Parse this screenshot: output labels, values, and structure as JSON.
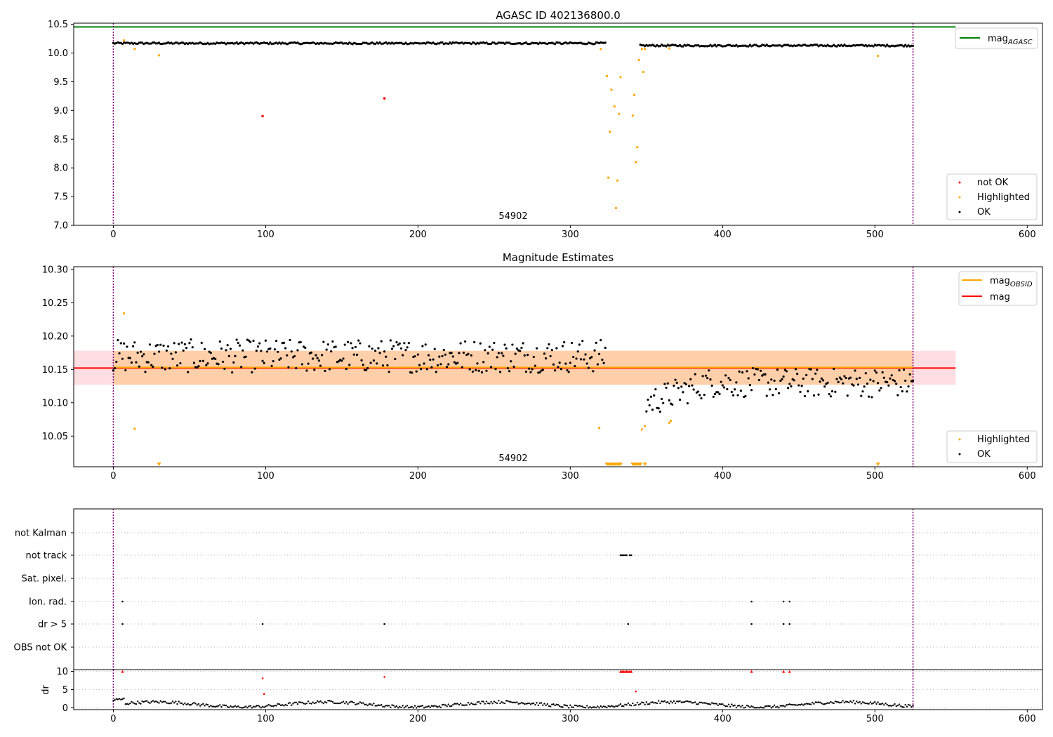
{
  "chart_data": [
    {
      "panel": "top",
      "type": "scatter",
      "title": "AGASC ID 402136800.0",
      "xlabel": "",
      "ylabel": "",
      "xlim": [
        -26,
        610
      ],
      "ylim": [
        7.0,
        10.52
      ],
      "xticks": [
        "0",
        "100",
        "200",
        "300",
        "400",
        "500",
        "600"
      ],
      "yticks": [
        "7.0",
        "7.5",
        "8.0",
        "8.5",
        "9.0",
        "9.5",
        "10.0",
        "10.5"
      ],
      "obsid_label": "54902",
      "obs_bounds": [
        0,
        525
      ],
      "mag_agasc": 10.455,
      "mag_agasc_extent": [
        -26,
        553
      ],
      "legend_lines": [
        {
          "label": "mag",
          "sub": "AGASC",
          "color": "#008000"
        }
      ],
      "legend_points": [
        {
          "label": "not OK",
          "color": "#ff0000"
        },
        {
          "label": "Highlighted",
          "color": "#ffa500"
        },
        {
          "label": "OK",
          "color": "#000000"
        }
      ],
      "ok_series": [
        {
          "x_start": 0,
          "x_end": 323,
          "mean": 10.17,
          "wiggle": 0.015
        },
        {
          "x_start": 346,
          "x_end": 525,
          "mean": 10.13,
          "wiggle": 0.015
        }
      ],
      "not_ok_points": [
        [
          98,
          8.9
        ],
        [
          178,
          9.21
        ]
      ],
      "highlighted_points": [
        [
          7,
          10.22
        ],
        [
          14,
          10.07
        ],
        [
          30,
          9.96
        ],
        [
          320,
          10.07
        ],
        [
          324,
          9.6
        ],
        [
          325,
          7.83
        ],
        [
          326,
          8.63
        ],
        [
          327,
          9.36
        ],
        [
          329,
          9.07
        ],
        [
          330,
          7.3
        ],
        [
          331,
          7.78
        ],
        [
          332,
          8.94
        ],
        [
          333,
          9.58
        ],
        [
          341,
          8.91
        ],
        [
          342,
          9.27
        ],
        [
          343,
          8.1
        ],
        [
          344,
          8.36
        ],
        [
          345,
          9.88
        ],
        [
          347,
          10.07
        ],
        [
          348,
          9.67
        ],
        [
          349,
          10.07
        ],
        [
          365,
          10.08
        ],
        [
          502,
          9.95
        ]
      ]
    },
    {
      "panel": "middle",
      "type": "scatter",
      "title": "Magnitude Estimates",
      "xlabel": "",
      "ylabel": "",
      "xlim": [
        -26,
        610
      ],
      "ylim": [
        10.004,
        10.304
      ],
      "xticks": [
        "0",
        "100",
        "200",
        "300",
        "400",
        "500",
        "600"
      ],
      "yticks": [
        "10.05",
        "10.10",
        "10.15",
        "10.20",
        "10.25",
        "10.30"
      ],
      "obsid_label": "54902",
      "obs_bounds": [
        0,
        525
      ],
      "mag_line": 10.152,
      "mag_obsid_line": 10.153,
      "band": [
        10.127,
        10.178
      ],
      "legend_lines": [
        {
          "label": "mag",
          "sub": "OBSID",
          "color": "#ffa500"
        },
        {
          "label": "mag",
          "sub": "",
          "color": "#ff0000"
        }
      ],
      "legend_points": [
        {
          "label": "Highlighted",
          "color": "#ffa500"
        },
        {
          "label": "OK",
          "color": "#000000"
        }
      ],
      "ok_series": [
        {
          "x_start": 0,
          "x_end": 323,
          "mean": 10.17,
          "spread": 0.025
        },
        {
          "x_start": 350,
          "x_end": 525,
          "mean": 10.13,
          "spread": 0.022
        }
      ],
      "highlighted_points": [
        [
          7,
          10.234
        ],
        [
          14,
          10.061
        ],
        [
          319,
          10.062
        ],
        [
          347,
          10.06
        ],
        [
          349,
          10.065
        ],
        [
          365,
          10.07
        ],
        [
          366,
          10.073
        ]
      ],
      "off_scale_markers": [
        30,
        324,
        325,
        326,
        327,
        328,
        329,
        330,
        331,
        332,
        333,
        341,
        342,
        343,
        344,
        345,
        346,
        349,
        502
      ]
    },
    {
      "panel": "flags",
      "type": "scatter",
      "categories": [
        "not Kalman",
        "not track",
        "Sat. pixel.",
        "Ion. rad.",
        "dr > 5",
        "OBS not OK"
      ],
      "xlim": [
        -26,
        610
      ],
      "obs_bounds": [
        0,
        525
      ],
      "points": [
        {
          "category": "not track",
          "x": [
            333,
            334,
            335,
            336,
            337,
            339,
            340
          ]
        },
        {
          "category": "Ion. rad.",
          "x": [
            6,
            419,
            440,
            444
          ]
        },
        {
          "category": "dr > 5",
          "x": [
            6,
            98,
            178,
            338,
            419,
            440,
            444
          ]
        }
      ]
    },
    {
      "panel": "bottom",
      "type": "scatter",
      "ylabel": "dr",
      "xlim": [
        -26,
        610
      ],
      "ylim": [
        -0.5,
        10.5
      ],
      "xticks": [
        "0",
        "100",
        "200",
        "300",
        "400",
        "500",
        "600"
      ],
      "yticks": [
        "0",
        "5",
        "10"
      ],
      "obs_bounds": [
        0,
        525
      ],
      "capped_markers": [
        6,
        333,
        334,
        335,
        336,
        337,
        338,
        339,
        340,
        419,
        440,
        444
      ],
      "red_points": [
        [
          98,
          8.1
        ],
        [
          99,
          3.8
        ],
        [
          178,
          8.5
        ],
        [
          343,
          4.5
        ]
      ],
      "dr_baseline": [
        0.3,
        2.4
      ]
    }
  ]
}
